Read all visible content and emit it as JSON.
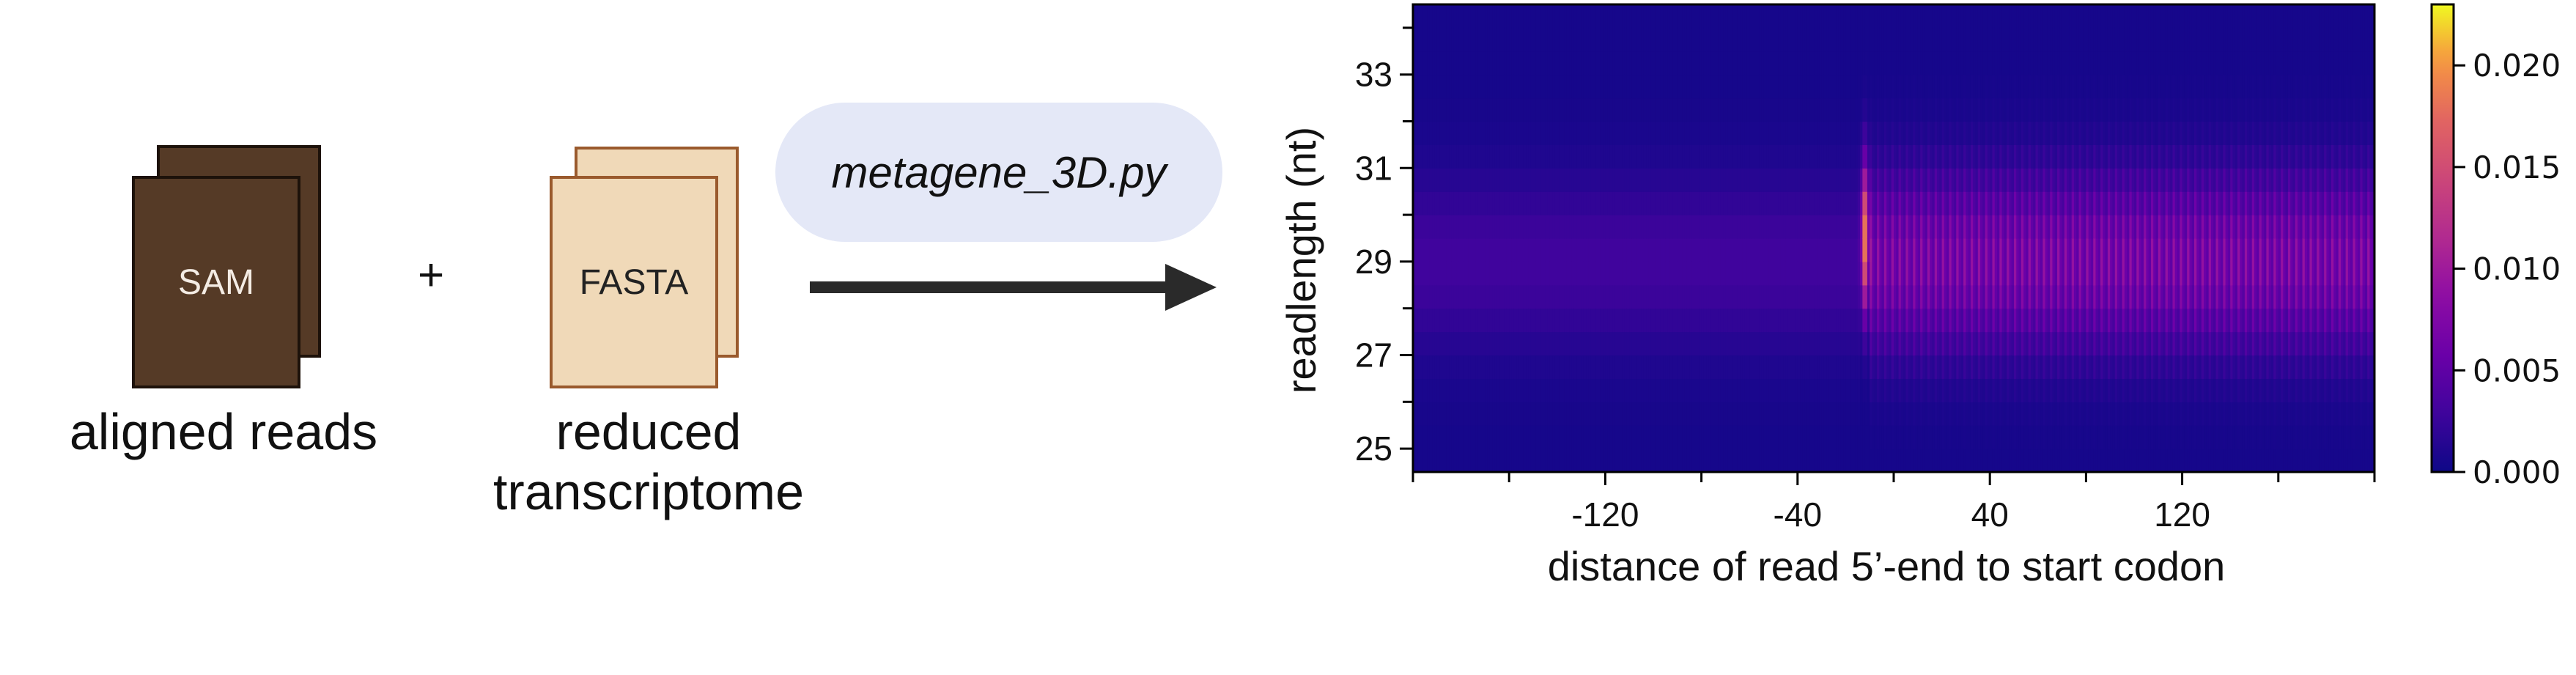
{
  "pipeline": {
    "sam_label": "SAM",
    "fasta_label": "FASTA",
    "plus": "+",
    "aligned_caption": "aligned reads",
    "reduced_caption_line1": "reduced",
    "reduced_caption_line2": "transcriptome",
    "script_name": "metagene_3D.py"
  },
  "colors": {
    "sam_fill": "#553a26",
    "fasta_fill": "#f0d9b8",
    "pill_fill": "#e4e8f7",
    "arrow": "#2a2a2a"
  },
  "chart_data": {
    "type": "heatmap",
    "title": "",
    "xlabel": "distance of read 5’-end to start codon",
    "ylabel": "readlength (nt)",
    "xlim": [
      -200,
      200
    ],
    "ylim": [
      24.5,
      34.5
    ],
    "x_major_ticks": [
      -120,
      -40,
      40,
      120
    ],
    "x_minor_ticks": [
      -200,
      -160,
      -80,
      0,
      80,
      160,
      200
    ],
    "x_tick_labels": [
      "-120",
      "-40",
      "40",
      "120"
    ],
    "y_ticks": [
      25,
      27,
      29,
      31,
      33
    ],
    "y_tick_labels": [
      "25",
      "27",
      "29",
      "31",
      "33"
    ],
    "y_minor_ticks": [
      26,
      28,
      30,
      32,
      34
    ],
    "colormap": "plasma",
    "colorbar": {
      "range": [
        0.0,
        0.023
      ],
      "ticks": [
        0.0,
        0.005,
        0.01,
        0.015,
        0.02
      ],
      "tick_labels": [
        "0.000",
        "0.005",
        "0.010",
        "0.015",
        "0.020"
      ]
    },
    "features": {
      "start_codon_peak_x": -12,
      "start_codon_peak_readlength": 29.5,
      "start_codon_peak_value": 0.021,
      "background_value": 0.0005,
      "upstream_band_value": 0.003,
      "downstream_band_value": 0.007,
      "band_readlength_center": 29,
      "codon_periodicity_nt": 3
    }
  }
}
